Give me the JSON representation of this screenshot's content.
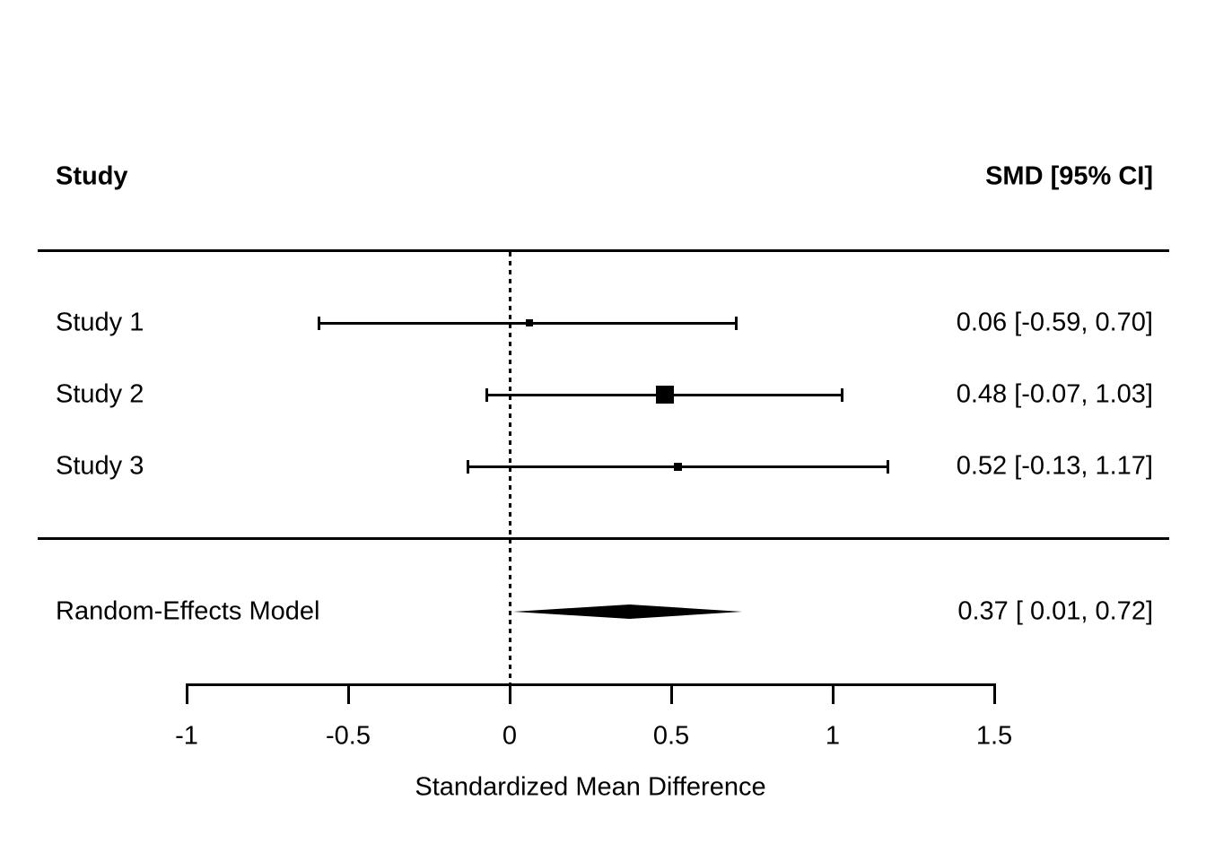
{
  "chart_data": {
    "type": "forest",
    "columns": {
      "left": "Study",
      "right": "SMD [95% CI]"
    },
    "studies": [
      {
        "label": "Study 1",
        "smd": 0.06,
        "ci_lower": -0.59,
        "ci_upper": 0.7,
        "estimate_text": "0.06 [-0.59, 0.70]",
        "marker_size_px": 8
      },
      {
        "label": "Study 2",
        "smd": 0.48,
        "ci_lower": -0.07,
        "ci_upper": 1.03,
        "estimate_text": "0.48 [-0.07, 1.03]",
        "marker_size_px": 20
      },
      {
        "label": "Study 3",
        "smd": 0.52,
        "ci_lower": -0.13,
        "ci_upper": 1.17,
        "estimate_text": "0.52 [-0.13, 1.17]",
        "marker_size_px": 9
      }
    ],
    "summary": {
      "label": "Random-Effects Model",
      "smd": 0.37,
      "ci_lower": 0.01,
      "ci_upper": 0.72,
      "estimate_text": "0.37 [ 0.01, 0.72]"
    },
    "xaxis": {
      "label": "Standardized Mean Difference",
      "range": [
        -1,
        1.5
      ],
      "ticks": [
        -1,
        -0.5,
        0,
        0.5,
        1,
        1.5
      ],
      "tick_labels": [
        "-1",
        "-0.5",
        "0",
        "0.5",
        "1",
        "1.5"
      ],
      "reference_line": 0
    }
  },
  "colors": {
    "foreground": "#000000",
    "background": "#ffffff"
  }
}
